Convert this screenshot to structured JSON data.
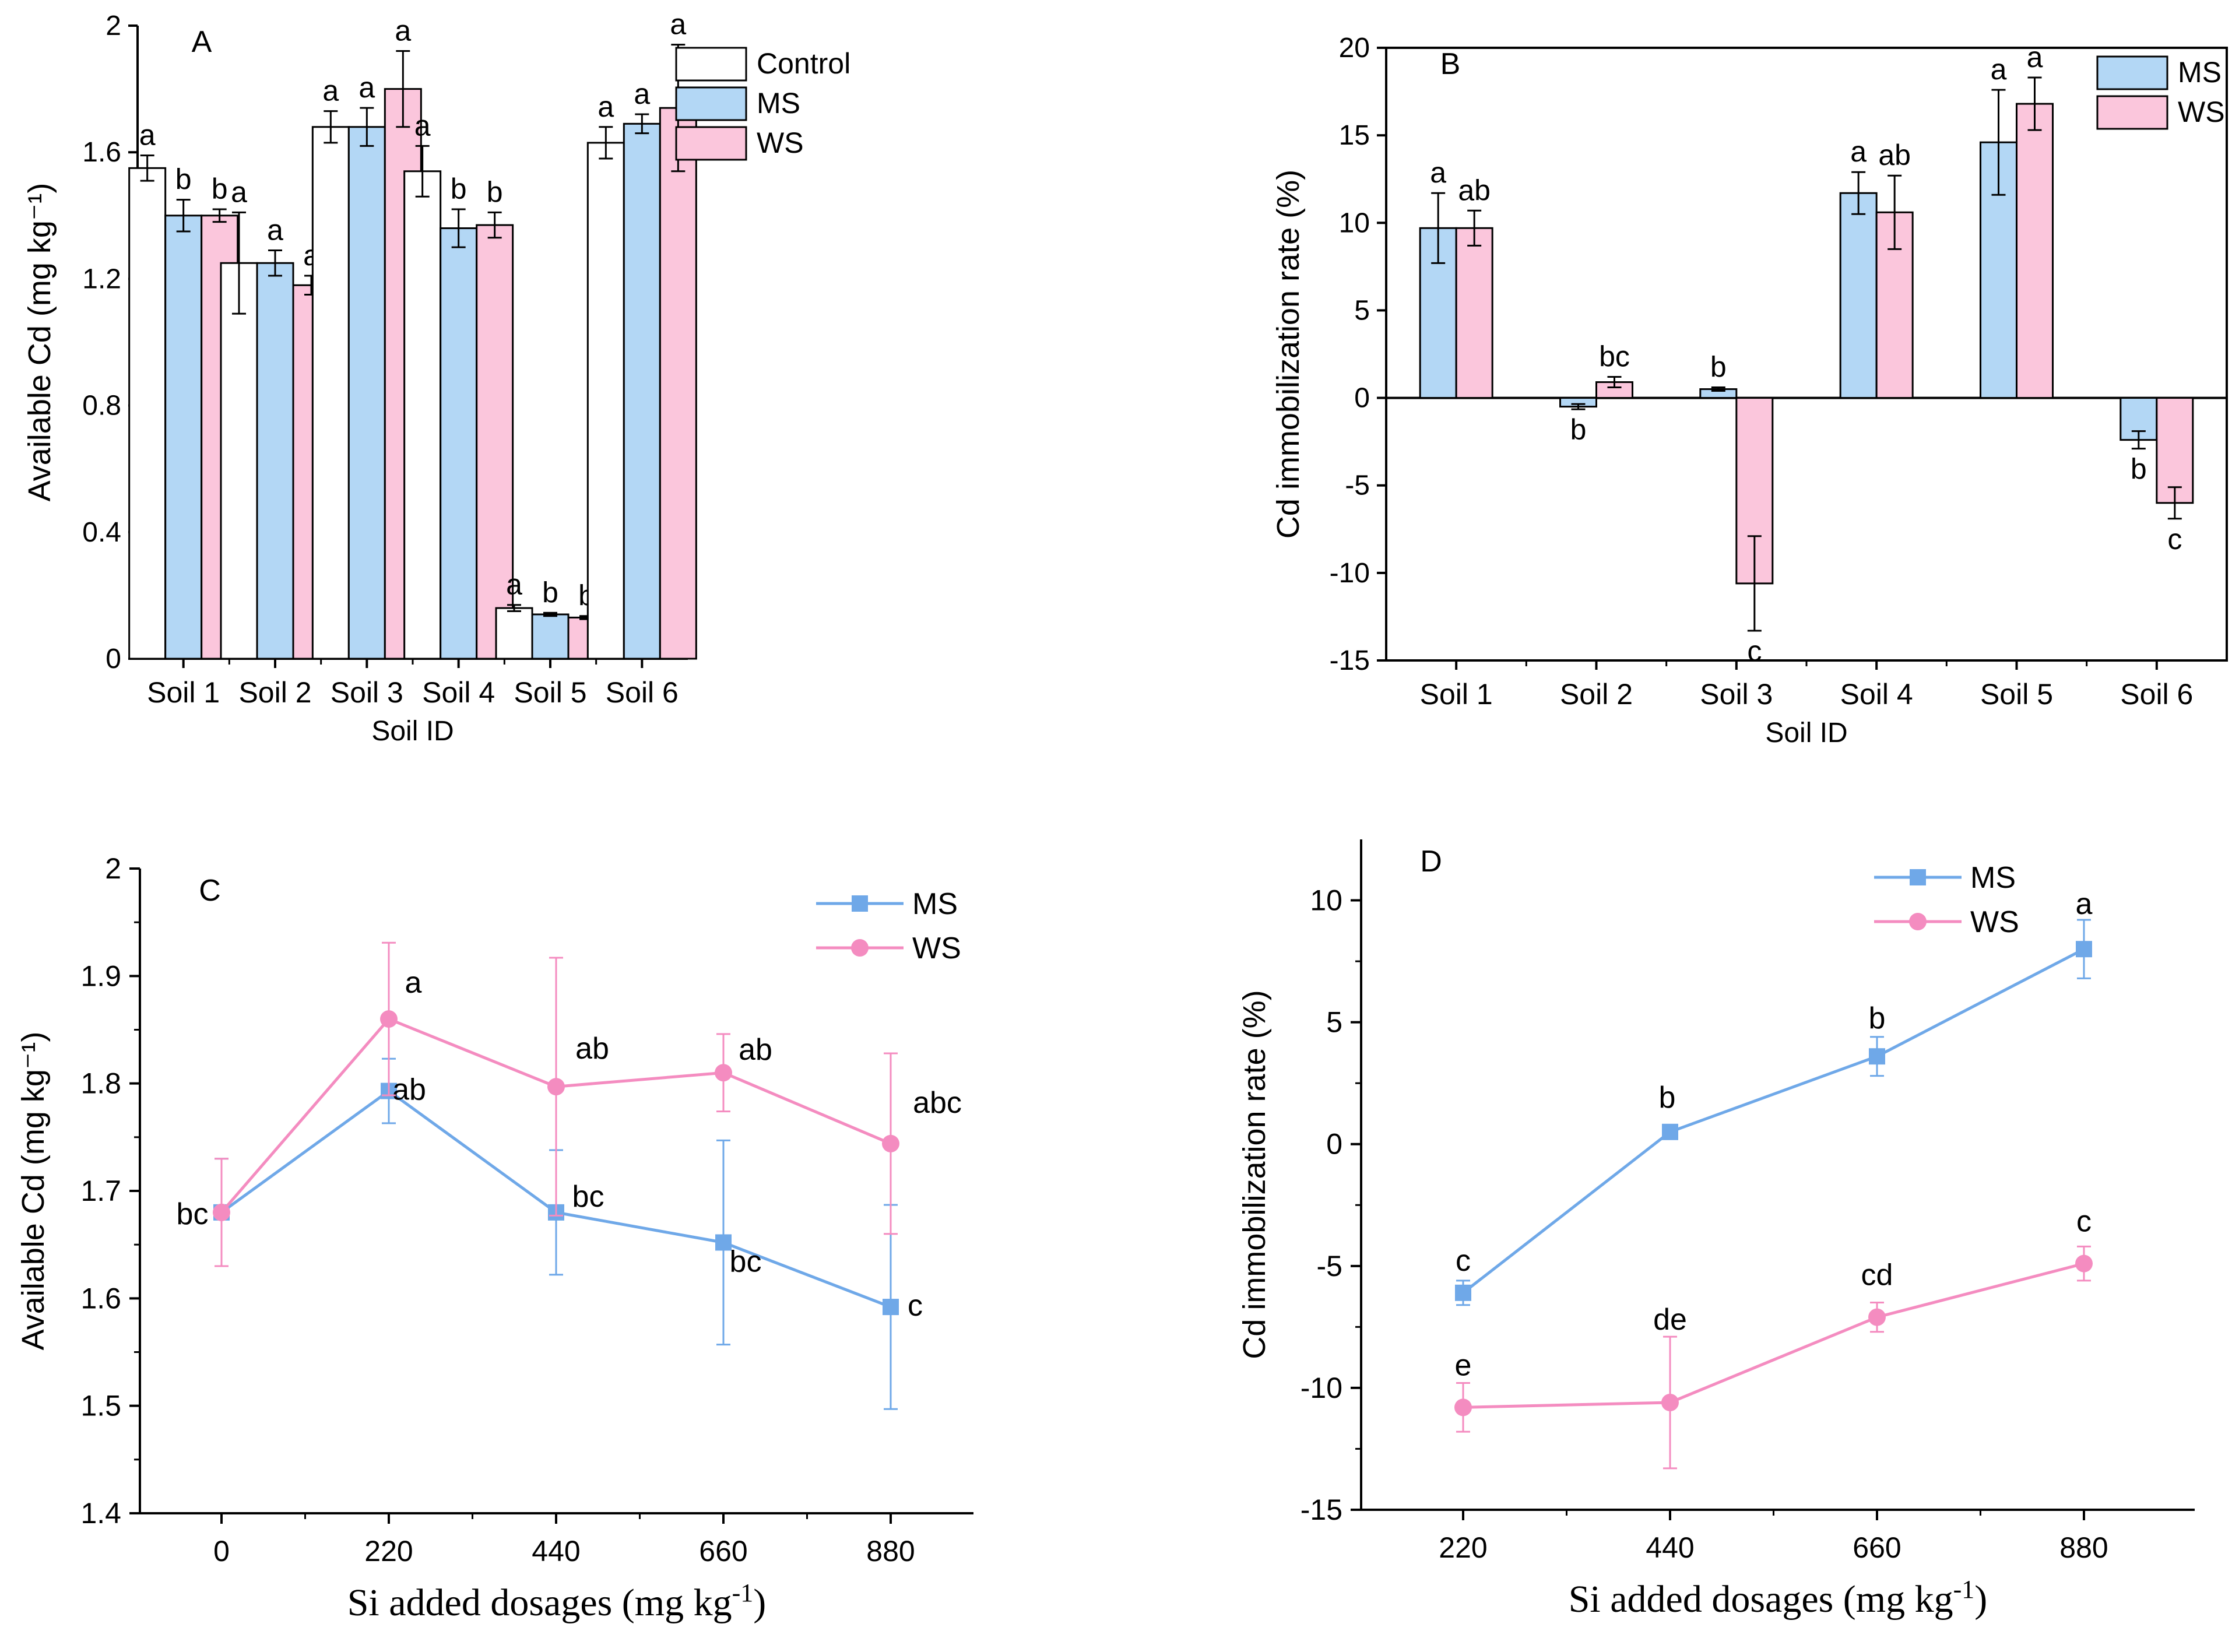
{
  "colors": {
    "control": "#ffffff",
    "ms_fill": "#b3d7f5",
    "ws_fill": "#fbc6dc",
    "ms_line": "#6fa8e8",
    "ws_line": "#f48cc0",
    "axis": "#000000"
  },
  "chart_data": [
    {
      "id": "A",
      "panel_label": "A",
      "type": "bar",
      "xlabel": "Soil ID",
      "ylabel": "Available Cd (mg kg⁻¹)",
      "ylim": [
        0,
        2
      ],
      "yticks": [
        "0",
        "0.4",
        "0.8",
        "1.2",
        "1.6",
        "2"
      ],
      "categories": [
        "Soil 1",
        "Soil 2",
        "Soil 3",
        "Soil 4",
        "Soil 5",
        "Soil 6"
      ],
      "legend": [
        "Control",
        "MS",
        "WS"
      ],
      "series": [
        {
          "name": "Control",
          "values": [
            1.55,
            1.25,
            1.68,
            1.54,
            0.16,
            1.63
          ],
          "errors": [
            0.04,
            0.16,
            0.05,
            0.08,
            0.01,
            0.05
          ],
          "labels": [
            "a",
            "a",
            "a",
            "a",
            "a",
            "a"
          ]
        },
        {
          "name": "MS",
          "values": [
            1.4,
            1.25,
            1.68,
            1.36,
            0.14,
            1.69
          ],
          "errors": [
            0.05,
            0.04,
            0.06,
            0.06,
            0.005,
            0.03
          ],
          "labels": [
            "b",
            "a",
            "a",
            "b",
            "b",
            "a"
          ]
        },
        {
          "name": "WS",
          "values": [
            1.4,
            1.18,
            1.8,
            1.37,
            0.13,
            1.74
          ],
          "errors": [
            0.02,
            0.03,
            0.12,
            0.04,
            0.005,
            0.2
          ],
          "labels": [
            "b",
            "a",
            "a",
            "b",
            "b",
            "a"
          ]
        }
      ]
    },
    {
      "id": "B",
      "panel_label": "B",
      "type": "bar",
      "xlabel": "Soil ID",
      "ylabel": "Cd immobilization rate (%)",
      "ylim": [
        -15,
        20
      ],
      "yticks": [
        "-15",
        "-10",
        "-5",
        "0",
        "5",
        "10",
        "15",
        "20"
      ],
      "categories": [
        "Soil 1",
        "Soil 2",
        "Soil 3",
        "Soil 4",
        "Soil 5",
        "Soil 6"
      ],
      "legend": [
        "MS",
        "WS"
      ],
      "series": [
        {
          "name": "MS",
          "values": [
            9.7,
            -0.5,
            0.5,
            11.7,
            14.6,
            -2.4
          ],
          "errors": [
            2.0,
            0.15,
            0.1,
            1.2,
            3.0,
            0.5
          ],
          "labels": [
            "a",
            "b",
            "b",
            "a",
            "a",
            "b"
          ]
        },
        {
          "name": "WS",
          "values": [
            9.7,
            0.9,
            -10.6,
            10.6,
            16.8,
            -6.0
          ],
          "errors": [
            1.0,
            0.3,
            2.7,
            2.1,
            1.5,
            0.9
          ],
          "labels": [
            "ab",
            "bc",
            "c",
            "ab",
            "a",
            "c"
          ]
        }
      ]
    },
    {
      "id": "C",
      "panel_label": "C",
      "type": "line",
      "xlabel": "Si added dosages (mg kg⁻¹)",
      "ylabel": "Available Cd (mg kg⁻¹)",
      "ylim": [
        1.4,
        2.0
      ],
      "yticks": [
        "1.4",
        "1.5",
        "1.6",
        "1.7",
        "1.8",
        "1.9",
        "2"
      ],
      "x": [
        0,
        220,
        440,
        660,
        880
      ],
      "xticks": [
        "0",
        "220",
        "440",
        "660",
        "880"
      ],
      "legend": [
        "MS",
        "WS"
      ],
      "series": [
        {
          "name": "MS",
          "marker": "square",
          "values": [
            1.68,
            1.793,
            1.68,
            1.652,
            1.592
          ],
          "errors": [
            0.05,
            0.03,
            0.058,
            0.095,
            0.095
          ],
          "labels": [
            "bc",
            "ab",
            "bc",
            "bc",
            "c"
          ]
        },
        {
          "name": "WS",
          "marker": "circle",
          "values": [
            1.68,
            1.86,
            1.797,
            1.81,
            1.744
          ],
          "errors": [
            0.05,
            0.071,
            0.12,
            0.036,
            0.084
          ],
          "labels": [
            "",
            "a",
            "ab",
            "ab",
            "abc"
          ]
        }
      ]
    },
    {
      "id": "D",
      "panel_label": "D",
      "type": "line",
      "xlabel": "Si added dosages (mg kg⁻¹)",
      "ylabel": "Cd immobilization rate (%)",
      "ylim": [
        -15,
        12.5
      ],
      "yticks": [
        "-15",
        "-10",
        "-5",
        "0",
        "5",
        "10"
      ],
      "x": [
        220,
        440,
        660,
        880
      ],
      "xticks": [
        "220",
        "440",
        "660",
        "880"
      ],
      "legend": [
        "MS",
        "WS"
      ],
      "series": [
        {
          "name": "MS",
          "marker": "square",
          "values": [
            -6.1,
            0.5,
            3.6,
            8.0
          ],
          "errors": [
            0.5,
            0.2,
            0.8,
            1.2
          ],
          "labels": [
            "c",
            "b",
            "b",
            "a"
          ]
        },
        {
          "name": "WS",
          "marker": "circle",
          "values": [
            -10.8,
            -10.6,
            -7.1,
            -4.9
          ],
          "errors": [
            1.0,
            2.7,
            0.6,
            0.7
          ],
          "labels": [
            "e",
            "de",
            "cd",
            "c"
          ]
        }
      ]
    }
  ]
}
